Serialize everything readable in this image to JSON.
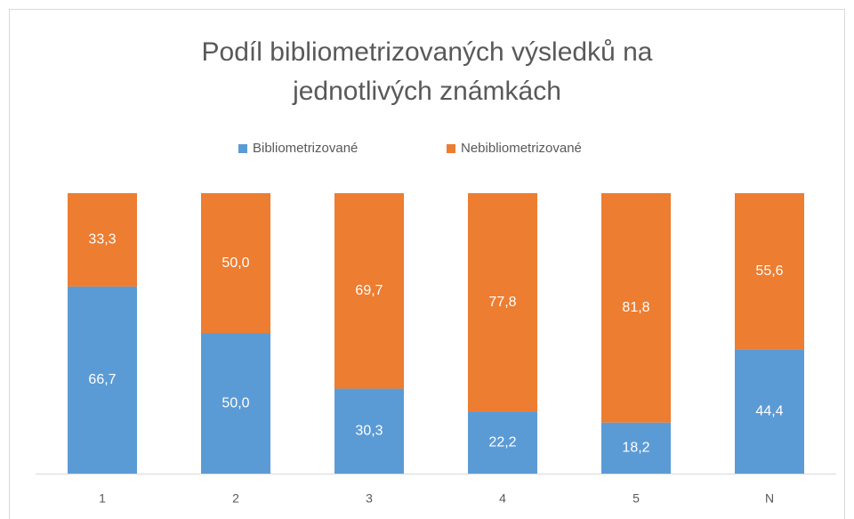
{
  "chart_data": {
    "type": "stacked_bar",
    "title": [
      "Podíl bibliometrizovaných výsledků na",
      "jednotlivých známkách"
    ],
    "categories": [
      "1",
      "2",
      "3",
      "4",
      "5",
      "N"
    ],
    "series": [
      {
        "name": "Bibliometrizované",
        "color": "#5b9bd5",
        "values": [
          66.7,
          50.0,
          30.3,
          22.2,
          18.2,
          44.4
        ],
        "value_labels": [
          "66,7",
          "50,0",
          "30,3",
          "22,2",
          "18,2",
          "44,4"
        ]
      },
      {
        "name": "Nebibliometrizované",
        "color": "#ed7d31",
        "values": [
          33.3,
          50.0,
          69.7,
          77.8,
          81.8,
          55.6
        ],
        "value_labels": [
          "33,3",
          "50,0",
          "69,7",
          "77,8",
          "81,8",
          "55,6"
        ]
      }
    ],
    "ylim": [
      0,
      100
    ],
    "legend": "top"
  }
}
